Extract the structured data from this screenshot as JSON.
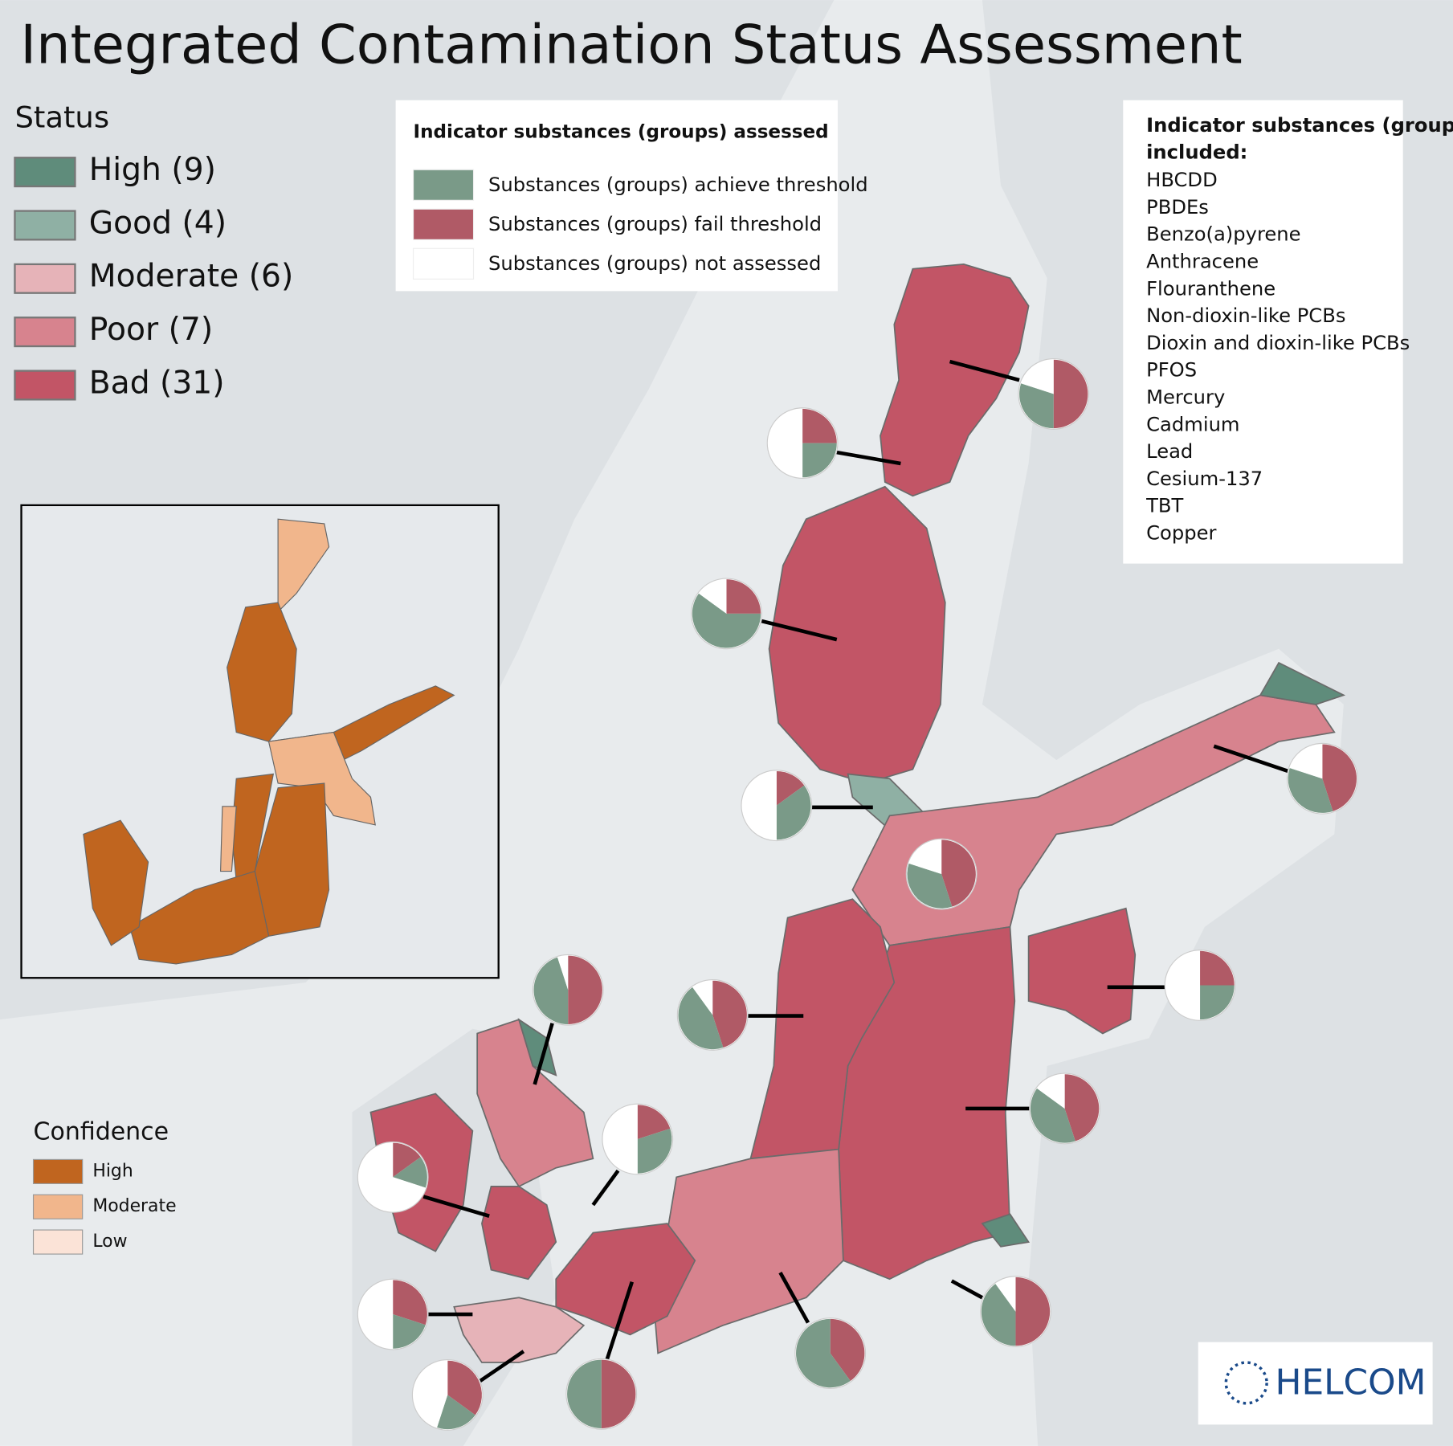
{
  "title": "Integrated Contamination Status Assessment",
  "status_legend": {
    "title": "Status",
    "items": [
      {
        "label": "High (9)",
        "color": "#5f8c7b"
      },
      {
        "label": "Good (4)",
        "color": "#8fb0a4"
      },
      {
        "label": "Moderate (6)",
        "color": "#e6b3b8"
      },
      {
        "label": "Poor (7)",
        "color": "#d7838e"
      },
      {
        "label": "Bad (31)",
        "color": "#c25566"
      }
    ]
  },
  "indicator_legend": {
    "title": "Indicator substances (groups) assessed",
    "items": [
      {
        "label": "Substances (groups) achieve threshold",
        "color": "#7a9a88"
      },
      {
        "label": "Substances (groups) fail threshold",
        "color": "#b05a66"
      },
      {
        "label": "Substances (groups) not assessed",
        "color": "#ffffff"
      }
    ]
  },
  "substances": {
    "title": "Indicator substances (groups) included:",
    "items": [
      "HBCDD",
      "PBDEs",
      "Benzo(a)pyrene",
      "Anthracene",
      "Flouranthene",
      "Non-dioxin-like PCBs",
      "Dioxin and dioxin-like PCBs",
      "PFOS",
      "Mercury",
      "Cadmium",
      "Lead",
      "Cesium-137",
      "TBT",
      "Copper"
    ]
  },
  "confidence_legend": {
    "title": "Confidence",
    "items": [
      {
        "label": "High",
        "color": "#c0651f"
      },
      {
        "label": "Moderate",
        "color": "#f1b68c"
      },
      {
        "label": "Low",
        "color": "#fbe3d7"
      }
    ]
  },
  "pies": [
    {
      "fail": 50,
      "achieve": 30,
      "not_assessed": 20
    },
    {
      "fail": 25,
      "achieve": 25,
      "not_assessed": 50
    },
    {
      "fail": 25,
      "achieve": 60,
      "not_assessed": 15
    },
    {
      "fail": 15,
      "achieve": 35,
      "not_assessed": 50
    },
    {
      "fail": 45,
      "achieve": 35,
      "not_assessed": 20
    },
    {
      "fail": 45,
      "achieve": 35,
      "not_assessed": 20
    },
    {
      "fail": 50,
      "achieve": 45,
      "not_assessed": 5
    },
    {
      "fail": 45,
      "achieve": 45,
      "not_assessed": 10
    },
    {
      "fail": 25,
      "achieve": 25,
      "not_assessed": 50
    },
    {
      "fail": 45,
      "achieve": 40,
      "not_assessed": 15
    },
    {
      "fail": 20,
      "achieve": 30,
      "not_assessed": 50
    },
    {
      "fail": 15,
      "achieve": 15,
      "not_assessed": 70
    },
    {
      "fail": 30,
      "achieve": 20,
      "not_assessed": 50
    },
    {
      "fail": 35,
      "achieve": 20,
      "not_assessed": 45
    },
    {
      "fail": 50,
      "achieve": 50,
      "not_assessed": 0
    },
    {
      "fail": 40,
      "achieve": 60,
      "not_assessed": 0
    },
    {
      "fail": 50,
      "achieve": 40,
      "not_assessed": 10
    }
  ],
  "logo": "HELCOM"
}
